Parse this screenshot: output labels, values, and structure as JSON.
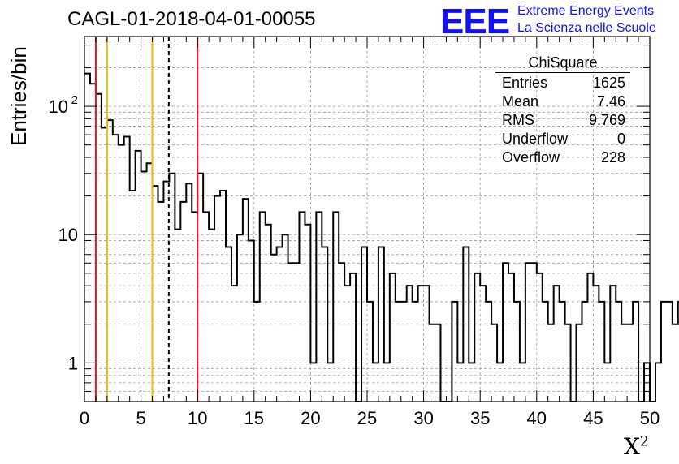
{
  "title": "CAGL-01-2018-04-01-00055",
  "logo": {
    "mark": "EEE",
    "line1": "Extreme Energy Events",
    "line2": "La Scienza nelle Scuole"
  },
  "stats": {
    "title": "ChiSquare",
    "rows": [
      {
        "label": "Entries",
        "value": "1625"
      },
      {
        "label": "Mean",
        "value": "7.46"
      },
      {
        "label": "RMS",
        "value": "9.769"
      },
      {
        "label": "Underflow",
        "value": "0"
      },
      {
        "label": "Overflow",
        "value": "228"
      }
    ]
  },
  "colors": {
    "red_line": "#e8141e",
    "yellow_line": "#f2b705",
    "logo_blue": "#1010ff"
  },
  "chart_data": {
    "type": "histogram",
    "title": "CAGL-01-2018-04-01-00055",
    "xlabel": "X",
    "xlabel_superscript": "2",
    "ylabel": "Entries/bin",
    "xlim": [
      0,
      50
    ],
    "ylim": [
      0.5,
      350
    ],
    "yscale": "log",
    "grid": true,
    "bin_width": 0.5,
    "x_ticks": [
      "0",
      "5",
      "10",
      "15",
      "20",
      "25",
      "30",
      "35",
      "40",
      "45",
      "50"
    ],
    "y_ticks": [
      {
        "value": 1,
        "label": "1"
      },
      {
        "value": 10,
        "label": "10"
      },
      {
        "value": 100,
        "label": "10",
        "exponent": "2"
      }
    ],
    "bin_values": [
      180,
      150,
      125,
      68,
      78,
      60,
      50,
      58,
      22,
      45,
      31,
      36,
      24,
      18,
      26,
      30,
      11,
      18,
      25,
      15,
      30,
      15,
      11,
      20,
      22,
      8,
      4,
      10,
      19,
      9,
      3,
      15,
      12,
      7,
      8,
      10,
      6,
      6,
      15,
      12,
      1,
      15,
      8,
      1,
      15,
      6,
      4,
      5,
      0,
      8,
      3,
      1,
      8,
      1,
      5,
      3,
      3,
      4,
      3,
      4,
      4,
      2,
      2,
      0,
      0,
      3,
      1,
      8,
      1,
      5,
      4,
      3,
      2,
      1,
      6,
      5,
      3,
      1,
      6,
      6,
      5,
      3,
      2,
      4,
      3,
      2,
      0,
      2,
      3,
      5,
      4,
      3,
      1,
      4,
      3,
      2,
      2,
      3,
      0,
      1,
      0,
      1,
      3,
      3,
      2,
      3,
      1,
      2,
      1,
      0,
      2,
      1,
      1,
      1,
      3,
      0,
      1,
      2,
      0,
      1,
      2,
      2,
      2,
      2,
      1,
      0,
      0,
      1,
      0,
      2,
      3,
      0,
      3,
      0,
      3,
      1,
      2,
      1,
      1,
      3,
      3,
      2,
      3,
      1,
      0,
      1,
      2,
      0,
      0,
      0,
      0,
      2,
      3,
      1,
      1,
      0,
      0,
      0,
      0,
      0,
      0,
      0,
      0,
      0,
      0,
      1,
      1,
      2,
      1,
      3,
      1,
      4,
      3,
      0,
      0,
      0,
      3,
      1,
      0,
      0,
      0,
      1,
      0,
      1,
      0,
      1,
      1,
      0,
      1,
      0,
      0,
      3,
      0,
      0,
      0,
      2,
      1,
      1,
      0,
      0
    ],
    "vlines": [
      {
        "x": 1,
        "style": "solid",
        "color": "#e8141e"
      },
      {
        "x": 2,
        "style": "solid",
        "color": "#f2b705"
      },
      {
        "x": 6,
        "style": "solid",
        "color": "#f2b705"
      },
      {
        "x": 7.46,
        "style": "dashed",
        "color": "#000000"
      },
      {
        "x": 10,
        "style": "solid",
        "color": "#e8141e"
      }
    ]
  }
}
